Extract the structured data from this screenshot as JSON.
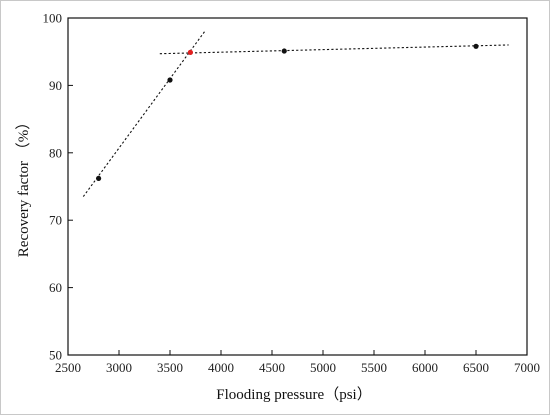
{
  "chart_data": {
    "type": "scatter",
    "title": "",
    "xlabel": "Flooding pressure（psi）",
    "ylabel": "Recovery factor （%）",
    "xlim": [
      2500,
      7000
    ],
    "ylim": [
      50,
      100
    ],
    "xticks": [
      2500,
      3000,
      3500,
      4000,
      4500,
      5000,
      5500,
      6000,
      6500,
      7000
    ],
    "yticks": [
      50,
      60,
      70,
      80,
      90,
      100
    ],
    "grid": false,
    "legend": "none",
    "series": [
      {
        "color": "#111111",
        "x": [
          2800,
          3500,
          4620,
          6500
        ],
        "y": [
          76.2,
          90.8,
          95.1,
          95.8
        ]
      },
      {
        "color": "#e02020",
        "x": [
          3700
        ],
        "y": [
          94.9
        ]
      }
    ],
    "trend_lines": [
      {
        "style": "dotted",
        "color": "#111111",
        "x": [
          2650,
          3840
        ],
        "y": [
          73.5,
          98.0
        ]
      },
      {
        "style": "dotted",
        "color": "#111111",
        "x": [
          3400,
          6820
        ],
        "y": [
          94.7,
          96.0
        ]
      }
    ]
  }
}
